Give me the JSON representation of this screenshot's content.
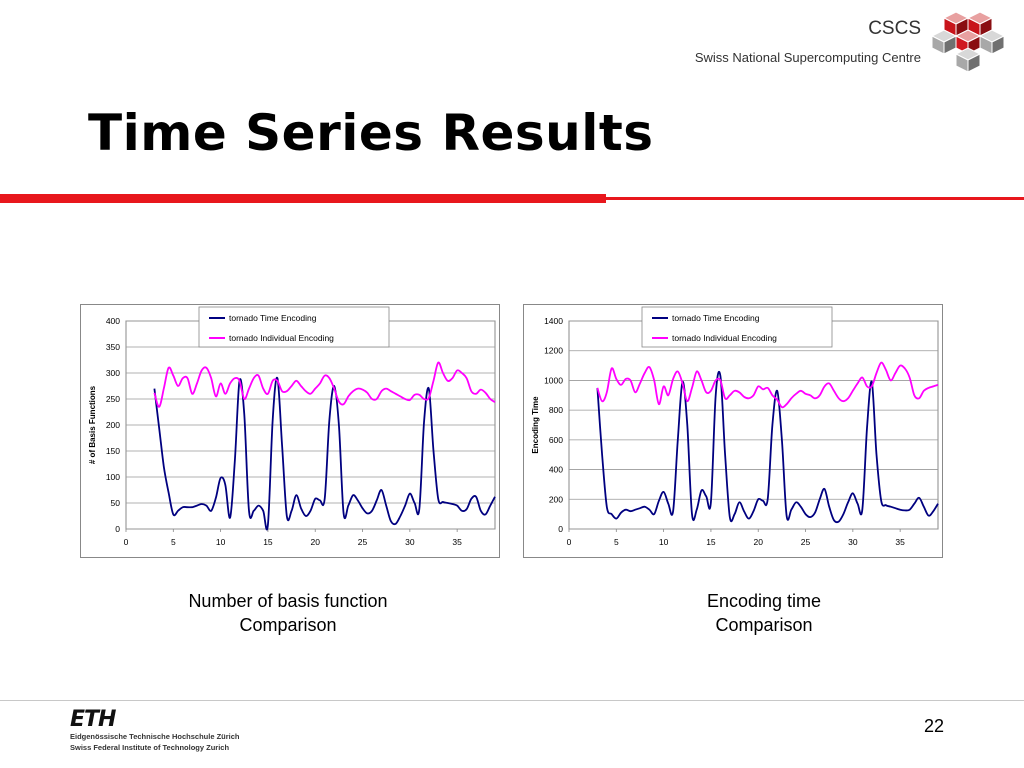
{
  "header": {
    "logo_name": "CSCS",
    "logo_subtitle": "Swiss National Supercomputing Centre",
    "title": "Time Series Results"
  },
  "colors": {
    "accent_red": "#e8171d",
    "series_time": "#000080",
    "series_individual": "#ff00ff"
  },
  "captions": {
    "left_line1": "Number of basis function",
    "left_line2": "Comparison",
    "right_line1": "Encoding time",
    "right_line2": "Comparison"
  },
  "footer": {
    "eth_logo": "ETH",
    "eth_line1": "Eidgenössische Technische Hochschule Zürich",
    "eth_line2": "Swiss Federal Institute of Technology Zurich",
    "page_number": "22"
  },
  "chart_data": [
    {
      "type": "line",
      "title": "",
      "xlabel": "",
      "ylabel": "# of Basis Functions",
      "xlim": [
        0,
        39
      ],
      "ylim": [
        0,
        400
      ],
      "xticks": [
        0,
        5,
        10,
        15,
        20,
        25,
        30,
        35
      ],
      "yticks": [
        0,
        50,
        100,
        150,
        200,
        250,
        300,
        350,
        400
      ],
      "grid": true,
      "legend": "top-center",
      "x": [
        3,
        3.5,
        4,
        4.5,
        5,
        5.5,
        6,
        6.5,
        7,
        7.5,
        8,
        8.5,
        9,
        9.5,
        10,
        10.5,
        11,
        11.5,
        12,
        12.5,
        13,
        13.5,
        14,
        14.5,
        15,
        15.5,
        16,
        16.5,
        17,
        17.5,
        18,
        18.5,
        19,
        19.5,
        20,
        20.5,
        21,
        21.5,
        22,
        22.5,
        23,
        23.5,
        24,
        24.5,
        25,
        25.5,
        26,
        26.5,
        27,
        27.5,
        28,
        28.5,
        29,
        29.5,
        30,
        30.5,
        31,
        31.5,
        32,
        32.5,
        33,
        33.5,
        34,
        34.5,
        35,
        35.5,
        36,
        36.5,
        37,
        37.5,
        38,
        38.5,
        39
      ],
      "series": [
        {
          "name": "tornado Time Encoding",
          "values": [
            270,
            195,
            120,
            70,
            28,
            35,
            42,
            42,
            42,
            45,
            48,
            45,
            35,
            60,
            98,
            85,
            22,
            130,
            285,
            220,
            35,
            35,
            45,
            35,
            8,
            210,
            290,
            160,
            25,
            35,
            65,
            40,
            25,
            35,
            58,
            55,
            58,
            210,
            275,
            200,
            30,
            45,
            65,
            55,
            40,
            30,
            35,
            55,
            75,
            45,
            15,
            10,
            25,
            45,
            68,
            50,
            38,
            205,
            270,
            150,
            58,
            52,
            50,
            48,
            45,
            35,
            38,
            58,
            62,
            35,
            28,
            45,
            62
          ]
        },
        {
          "name": "tornado Individual Encoding",
          "values": [
            262,
            235,
            270,
            310,
            295,
            275,
            290,
            290,
            260,
            280,
            305,
            310,
            290,
            255,
            280,
            260,
            280,
            290,
            285,
            250,
            270,
            290,
            295,
            270,
            260,
            285,
            285,
            265,
            265,
            275,
            285,
            275,
            265,
            260,
            270,
            280,
            295,
            290,
            270,
            245,
            240,
            255,
            265,
            270,
            268,
            262,
            250,
            250,
            265,
            270,
            265,
            260,
            255,
            250,
            248,
            258,
            258,
            250,
            252,
            285,
            320,
            300,
            285,
            290,
            305,
            300,
            290,
            265,
            260,
            268,
            262,
            250,
            244
          ]
        }
      ]
    },
    {
      "type": "line",
      "title": "",
      "xlabel": "",
      "ylabel": "Encoding Time",
      "xlim": [
        0,
        39
      ],
      "ylim": [
        0,
        1400
      ],
      "xticks": [
        0,
        5,
        10,
        15,
        20,
        25,
        30,
        35
      ],
      "yticks": [
        0,
        200,
        400,
        600,
        800,
        1000,
        1200,
        1400
      ],
      "grid": true,
      "legend": "top-center",
      "x": [
        3,
        3.5,
        4,
        4.5,
        5,
        5.5,
        6,
        6.5,
        7,
        7.5,
        8,
        8.5,
        9,
        9.5,
        10,
        10.5,
        11,
        11.5,
        12,
        12.5,
        13,
        13.5,
        14,
        14.5,
        15,
        15.5,
        16,
        16.5,
        17,
        17.5,
        18,
        18.5,
        19,
        19.5,
        20,
        20.5,
        21,
        21.5,
        22,
        22.5,
        23,
        23.5,
        24,
        24.5,
        25,
        25.5,
        26,
        26.5,
        27,
        27.5,
        28,
        28.5,
        29,
        29.5,
        30,
        30.5,
        31,
        31.5,
        32,
        32.5,
        33,
        33.5,
        34,
        34.5,
        35,
        35.5,
        36,
        36.5,
        37,
        37.5,
        38,
        38.5,
        39
      ],
      "series": [
        {
          "name": "tornado Time Encoding",
          "values": [
            950,
            500,
            150,
            100,
            70,
            110,
            130,
            120,
            130,
            140,
            150,
            130,
            100,
            190,
            250,
            170,
            120,
            600,
            990,
            700,
            100,
            130,
            260,
            220,
            180,
            900,
            1030,
            500,
            80,
            100,
            180,
            120,
            70,
            120,
            200,
            190,
            200,
            700,
            930,
            600,
            90,
            130,
            180,
            150,
            100,
            80,
            110,
            200,
            270,
            150,
            60,
            50,
            100,
            180,
            240,
            170,
            130,
            680,
            990,
            500,
            190,
            160,
            150,
            140,
            130,
            125,
            130,
            170,
            210,
            150,
            90,
            120,
            170
          ]
        },
        {
          "name": "tornado Individual Encoding",
          "values": [
            950,
            860,
            920,
            1080,
            1010,
            970,
            1010,
            1000,
            920,
            980,
            1050,
            1090,
            1000,
            840,
            960,
            900,
            1010,
            1060,
            980,
            860,
            950,
            1060,
            1000,
            920,
            930,
            1000,
            1000,
            880,
            900,
            930,
            920,
            890,
            880,
            900,
            960,
            940,
            950,
            900,
            870,
            820,
            840,
            880,
            910,
            930,
            910,
            900,
            880,
            900,
            960,
            980,
            930,
            880,
            860,
            880,
            930,
            980,
            1020,
            960,
            960,
            1050,
            1120,
            1070,
            1000,
            1050,
            1100,
            1080,
            1020,
            900,
            880,
            930,
            950,
            960,
            970
          ]
        }
      ]
    }
  ]
}
